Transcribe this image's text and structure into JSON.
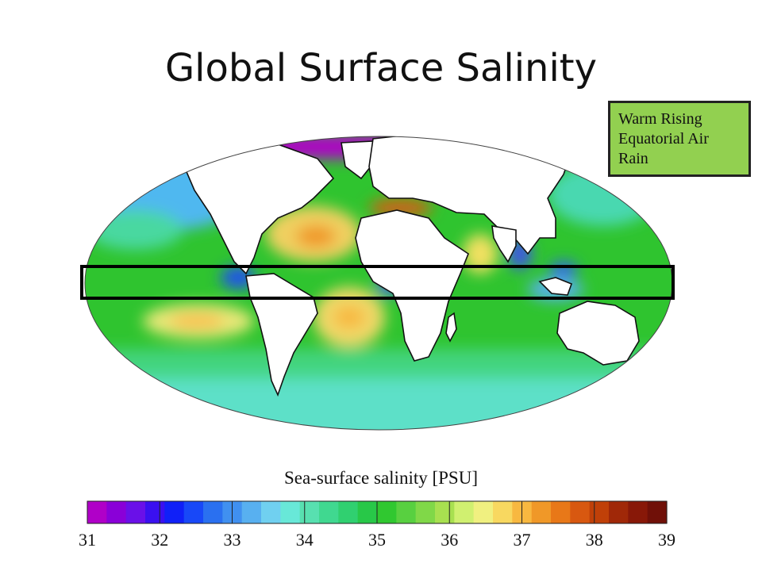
{
  "title": "Global Surface Salinity",
  "callout": {
    "lines": [
      "Warm Rising",
      "Equatorial Air",
      "Rain"
    ],
    "color": "#92d050"
  },
  "map": {
    "highlight": "equatorial-band",
    "land_color": "#ffffff",
    "ocean_base_color": "#2fc42f"
  },
  "scale": {
    "title": "Sea-surface salinity [PSU]",
    "ticks": [
      "31",
      "32",
      "33",
      "34",
      "35",
      "36",
      "37",
      "38",
      "39"
    ],
    "min": 31,
    "max": 39,
    "colors": [
      "#b000c8",
      "#8a00d8",
      "#6a10e8",
      "#3a10f0",
      "#1020f8",
      "#1848f8",
      "#2a70f0",
      "#4090f0",
      "#58b0f0",
      "#70d0f0",
      "#68e8d8",
      "#58e0b0",
      "#40d890",
      "#30d070",
      "#28c848",
      "#30c830",
      "#58d040",
      "#80d848",
      "#a8e050",
      "#d0f070",
      "#f0f080",
      "#f8d860",
      "#f8b840",
      "#f09828",
      "#e87818",
      "#d85810",
      "#c04008",
      "#a02808",
      "#881808",
      "#701008"
    ]
  }
}
